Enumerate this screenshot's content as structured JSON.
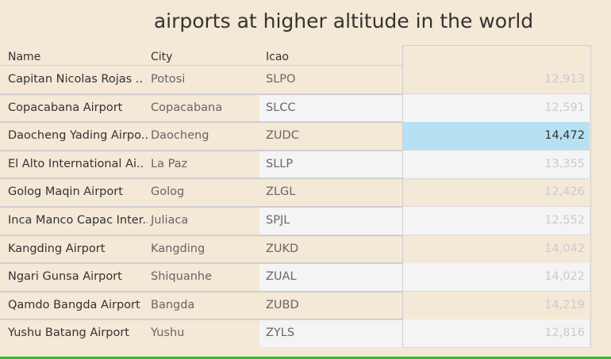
{
  "title": "airports at higher altitude in the world",
  "columns": {
    "name": "Name",
    "city": "City",
    "icao": "Icao"
  },
  "rows": [
    {
      "name": "Capitan Nicolas Rojas ..",
      "city": "Potosi",
      "icao": "SLPO",
      "value": "12,913"
    },
    {
      "name": "Copacabana Airport",
      "city": "Copacabana",
      "icao": "SLCC",
      "value": "12,591"
    },
    {
      "name": "Daocheng Yading Airpo..",
      "city": "Daocheng",
      "icao": "ZUDC",
      "value": "14,472"
    },
    {
      "name": "El Alto International Ai..",
      "city": "La Paz",
      "icao": "SLLP",
      "value": "13,355"
    },
    {
      "name": "Golog Maqin Airport",
      "city": "Golog",
      "icao": "ZLGL",
      "value": "12,426"
    },
    {
      "name": "Inca Manco Capac Inter..",
      "city": "Juliaca",
      "icao": "SPJL",
      "value": "12,552"
    },
    {
      "name": "Kangding Airport",
      "city": "Kangding",
      "icao": "ZUKD",
      "value": "14,042"
    },
    {
      "name": "Ngari Gunsa Airport",
      "city": "Shiquanhe",
      "icao": "ZUAL",
      "value": "14,022"
    },
    {
      "name": "Qamdo Bangda Airport",
      "city": "Bangda",
      "icao": "ZUBD",
      "value": "14,219"
    },
    {
      "name": "Yushu Batang Airport",
      "city": "Yushu",
      "icao": "ZYLS",
      "value": "12,816"
    }
  ],
  "highlighted_row": 2,
  "colors": {
    "background": "#f4e8d6",
    "highlight": "#b7e1f2",
    "bottom_bar": "#2bbf2b"
  }
}
